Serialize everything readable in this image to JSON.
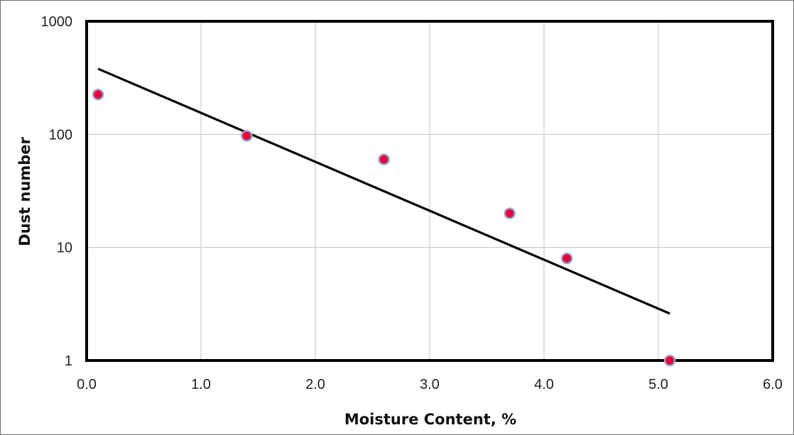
{
  "chart_data": {
    "type": "scatter",
    "title": "",
    "xlabel": "Moisture Content, %",
    "ylabel": "Dust number",
    "xlim": [
      0,
      6
    ],
    "ylim": [
      1,
      1000
    ],
    "yscale": "log",
    "x_ticks": [
      "0.0",
      "1.0",
      "2.0",
      "3.0",
      "4.0",
      "5.0",
      "6.0"
    ],
    "x_tick_values": [
      0,
      1,
      2,
      3,
      4,
      5,
      6
    ],
    "y_ticks": [
      "1",
      "10",
      "100",
      "1000"
    ],
    "y_tick_values": [
      1,
      10,
      100,
      1000
    ],
    "grid": true,
    "series": [
      {
        "kind": "points",
        "x": [
          0.1,
          1.4,
          2.6,
          3.7,
          4.2,
          5.1
        ],
        "y": [
          225,
          97,
          60,
          20,
          8,
          1
        ],
        "color": "#e8003a",
        "edge_color": "#9aa3c8"
      },
      {
        "kind": "trendline",
        "x": [
          0.1,
          5.1
        ],
        "y": [
          380,
          2.6
        ],
        "color": "#000000"
      }
    ]
  }
}
